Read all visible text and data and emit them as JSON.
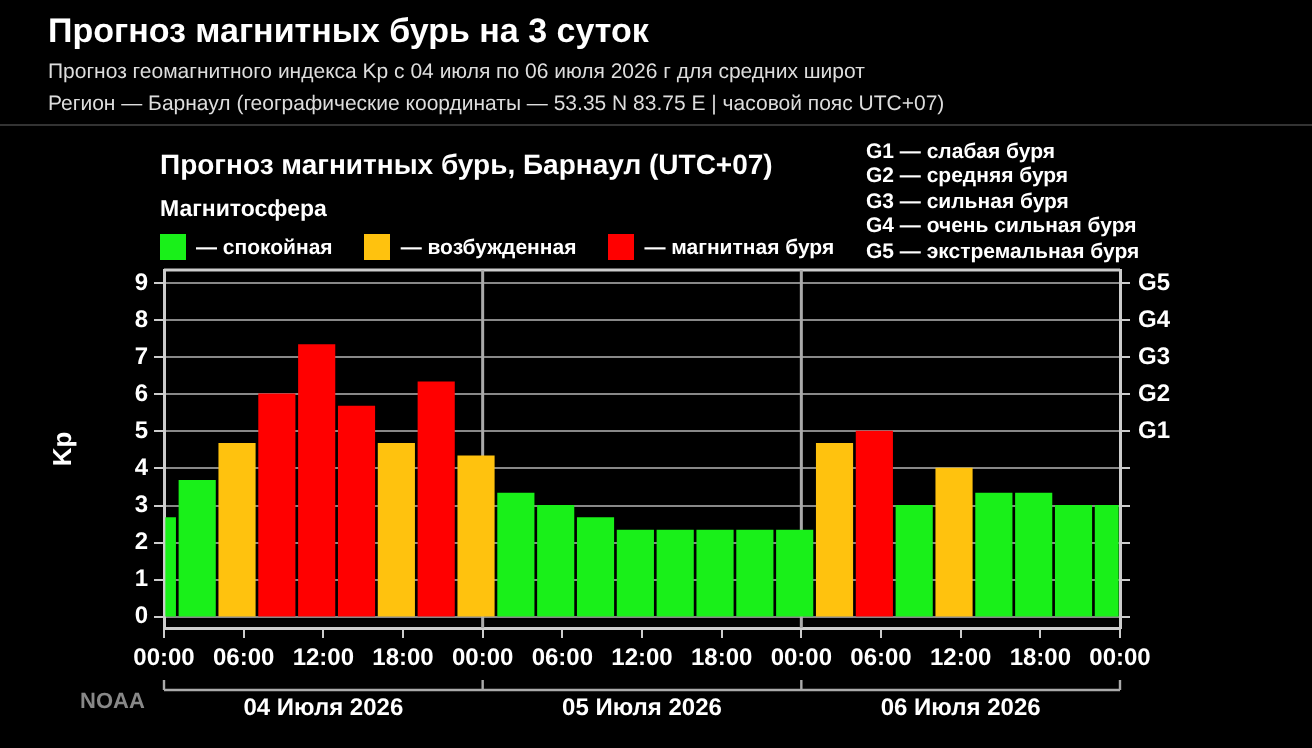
{
  "chart_data": {
    "type": "histogram",
    "title": "Прогноз магнитных бурь на 3 суток",
    "subtitle": "Прогноз геомагнитного индекса Kp с 04 июля по 06 июля 2026 г для средних широт\nРегион — Барнаул (географические координаты — 53.35 N 83.75 E | часовой пояс UTC+07)",
    "bins": [
      "2026-07-04T00:00",
      "2026-07-04T01:00",
      "2026-07-04T04:00",
      "2026-07-04T07:00",
      "2026-07-04T10:00",
      "2026-07-04T13:00",
      "2026-07-04T16:00",
      "2026-07-04T19:00",
      "2026-07-04T22:00",
      "2026-07-05T01:00",
      "2026-07-05T04:00",
      "2026-07-05T07:00",
      "2026-07-05T10:00",
      "2026-07-05T13:00",
      "2026-07-05T16:00",
      "2026-07-05T19:00",
      "2026-07-05T22:00",
      "2026-07-06T01:00",
      "2026-07-06T04:00",
      "2026-07-06T07:00",
      "2026-07-06T10:00",
      "2026-07-06T13:00",
      "2026-07-06T16:00",
      "2026-07-06T19:00",
      "2026-07-06T22:00",
      "2026-07-07T00:00"
    ],
    "series": [
      {
        "name": "— спокойная",
        "color": "#19f019",
        "values": [
          2.67,
          3.67,
          null,
          null,
          null,
          null,
          null,
          null,
          null,
          3.33,
          3.0,
          2.67,
          2.33,
          2.33,
          2.33,
          2.33,
          2.33,
          null,
          null,
          3.0,
          null,
          3.33,
          3.33,
          3.0,
          3.0
        ]
      },
      {
        "name": "— возбужденная",
        "color": "#ffc20e",
        "values": [
          null,
          null,
          4.67,
          null,
          null,
          null,
          4.67,
          null,
          4.33,
          null,
          null,
          null,
          null,
          null,
          null,
          null,
          null,
          4.67,
          null,
          null,
          4.0,
          null,
          null,
          null,
          null
        ]
      },
      {
        "name": "— магнитная буря",
        "color": "#ff0000",
        "values": [
          null,
          null,
          null,
          6.0,
          7.33,
          5.67,
          null,
          6.33,
          null,
          null,
          null,
          null,
          null,
          null,
          null,
          null,
          null,
          null,
          5.0,
          null,
          null,
          null,
          null,
          null,
          null
        ]
      }
    ],
    "legend_title": "Магнитосфера",
    "legend": "top left",
    "ylabel": "Kp",
    "xlim": [
      "2026-07-04T00:00",
      "2026-07-07T00:00"
    ],
    "xticks": [
      {
        "value": "2026-07-04T00:00",
        "label": "00:00"
      },
      {
        "value": "2026-07-04T06:00",
        "label": "06:00"
      },
      {
        "value": "2026-07-04T12:00",
        "label": "12:00"
      },
      {
        "value": "2026-07-04T18:00",
        "label": "18:00"
      },
      {
        "value": "2026-07-05T00:00",
        "label": "00:00"
      },
      {
        "value": "2026-07-05T06:00",
        "label": "06:00"
      },
      {
        "value": "2026-07-05T12:00",
        "label": "12:00"
      },
      {
        "value": "2026-07-05T18:00",
        "label": "18:00"
      },
      {
        "value": "2026-07-06T00:00",
        "label": "00:00"
      },
      {
        "value": "2026-07-06T06:00",
        "label": "06:00"
      },
      {
        "value": "2026-07-06T12:00",
        "label": "12:00"
      },
      {
        "value": "2026-07-06T18:00",
        "label": "18:00"
      },
      {
        "value": "2026-07-07T00:00",
        "label": "00:00"
      }
    ],
    "ylim": [
      -0.3,
      9.35
    ],
    "yticks": [
      0,
      1,
      2,
      3,
      4,
      5,
      6,
      7,
      8,
      9
    ],
    "grid": "y",
    "ref_lines": [
      {
        "axis": "x",
        "value": "2026-07-05T00:00",
        "color": "#aaaaaa"
      },
      {
        "axis": "x",
        "value": "2026-07-06T00:00",
        "color": "#aaaaaa"
      }
    ],
    "annotations": [
      "Прогноз магнитных бурь, Барнаул (UTC+07)",
      "G1 — слабая буря\nG2 — средняя буря\nG3 — сильная буря\nG4 — очень сильная буря\nG5 — экстремальная буря",
      "NOAA",
      "04 Июля 2026",
      "05 Июля 2026",
      "06 Июля 2026",
      "G1",
      "G2",
      "G3",
      "G4",
      "G5"
    ]
  }
}
